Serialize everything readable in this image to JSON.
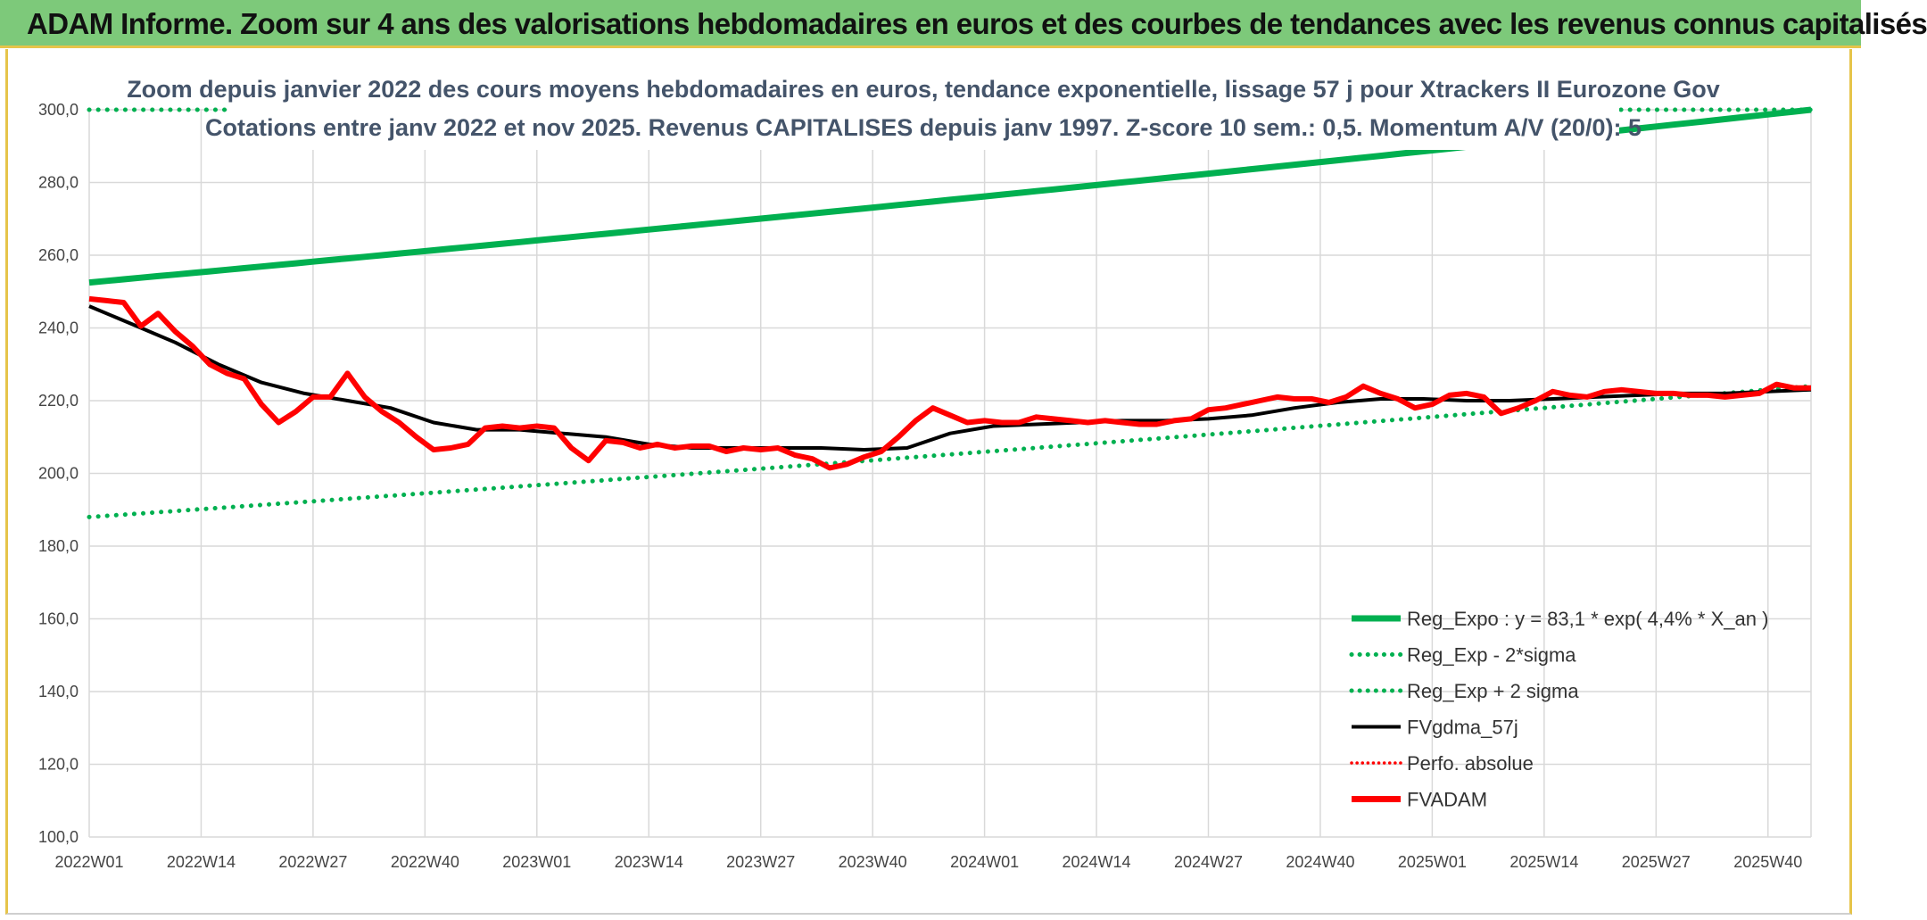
{
  "header": {
    "title": "ADAM Informe. Zoom sur 4 ans des valorisations hebdomadaires en euros et des courbes de tendances avec les revenus connus capitalisés"
  },
  "colors": {
    "banner": "#7dc97a",
    "reg_expo": "#00b050",
    "bands": "#00b050",
    "gdma": "#000000",
    "adam": "#ff0000"
  },
  "chart_data": {
    "type": "line",
    "title_lines": [
      "Zoom depuis janvier 2022 des cours moyens hebdomadaires en euros, tendance exponentielle, lissage 57 j pour Xtrackers II Eurozone Gov",
      "Cotations entre janv 2022 et nov 2025. Revenus CAPITALISES depuis janv 1997. Z-score 10 sem.: 0,5. Momentum A/V (20/0): 5"
    ],
    "ylim": [
      100,
      300
    ],
    "y_ticks": [
      "100,0",
      "120,0",
      "140,0",
      "160,0",
      "180,0",
      "200,0",
      "220,0",
      "240,0",
      "260,0",
      "280,0",
      "300,0"
    ],
    "y_tick_values": [
      100,
      120,
      140,
      160,
      180,
      200,
      220,
      240,
      260,
      280,
      300
    ],
    "x_range_weeks": [
      0,
      200
    ],
    "x_ticks": [
      "2022W01",
      "2022W14",
      "2022W27",
      "2022W40",
      "2023W01",
      "2023W14",
      "2023W27",
      "2023W40",
      "2024W01",
      "2024W14",
      "2024W27",
      "2024W40",
      "2025W01",
      "2025W14",
      "2025W27",
      "2025W40"
    ],
    "x_tick_weeks": [
      0,
      13,
      26,
      39,
      52,
      65,
      78,
      91,
      104,
      117,
      130,
      143,
      156,
      169,
      182,
      195
    ],
    "legend": [
      {
        "label": "Reg_Expo : y = 83,1 * exp( 4,4% *  X_an )",
        "style": "reg"
      },
      {
        "label": "Reg_Exp - 2*sigma",
        "style": "band"
      },
      {
        "label": "Reg_Exp + 2 sigma",
        "style": "band"
      },
      {
        "label": "FVgdma_57j",
        "style": "gdma"
      },
      {
        "label": "Perfo. absolue",
        "style": "perfo"
      },
      {
        "label": "FVADAM",
        "style": "adam"
      }
    ],
    "series": [
      {
        "name": "Reg_Expo",
        "start": 252.5,
        "end": 300.0
      },
      {
        "name": "Reg_Exp - 2*sigma",
        "start": 188.0,
        "end": 224.0
      },
      {
        "name": "Reg_Exp + 2 sigma",
        "value_visible": 300.0
      },
      {
        "name": "FVgdma_57j",
        "x": [
          0,
          5,
          10,
          15,
          20,
          25,
          30,
          35,
          40,
          45,
          50,
          55,
          60,
          65,
          70,
          75,
          80,
          85,
          90,
          95,
          100,
          105,
          110,
          115,
          120,
          125,
          130,
          135,
          140,
          145,
          150,
          155,
          160,
          165,
          170,
          175,
          180,
          185,
          190,
          195,
          200
        ],
        "y": [
          246,
          241,
          236,
          230,
          225,
          222,
          220,
          218,
          214,
          212,
          212,
          211,
          210,
          208,
          207,
          207,
          207,
          207,
          206.5,
          207,
          211,
          213,
          213.5,
          214,
          214.5,
          214.5,
          215,
          216,
          218,
          219.5,
          220.5,
          220.5,
          220,
          220,
          220.5,
          221,
          221.5,
          222,
          222,
          222.5,
          223
        ]
      },
      {
        "name": "FVADAM",
        "x": [
          0,
          2,
          4,
          6,
          8,
          10,
          12,
          14,
          16,
          18,
          20,
          22,
          24,
          26,
          28,
          30,
          32,
          34,
          36,
          38,
          40,
          42,
          44,
          46,
          48,
          50,
          52,
          54,
          56,
          58,
          60,
          62,
          64,
          66,
          68,
          70,
          72,
          74,
          76,
          78,
          80,
          82,
          84,
          86,
          88,
          90,
          92,
          94,
          96,
          98,
          100,
          102,
          104,
          106,
          108,
          110,
          112,
          114,
          116,
          118,
          120,
          122,
          124,
          126,
          128,
          130,
          132,
          134,
          136,
          138,
          140,
          142,
          144,
          146,
          148,
          150,
          152,
          154,
          156,
          158,
          160,
          162,
          164,
          166,
          168,
          170,
          172,
          174,
          176,
          178,
          180,
          182,
          184,
          186,
          188,
          190,
          192,
          194,
          196,
          198,
          200
        ],
        "y": [
          248,
          247.5,
          247,
          240.5,
          244,
          239,
          235,
          230,
          227.5,
          226,
          219,
          214,
          217,
          221,
          221,
          227.5,
          221,
          217,
          214,
          210,
          206.5,
          207,
          208,
          212.5,
          213,
          212.5,
          213,
          212.5,
          207,
          203.5,
          209,
          208.5,
          207,
          208,
          207,
          207.5,
          207.5,
          206,
          207,
          206.5,
          207,
          205,
          204,
          201.5,
          202.5,
          204.5,
          206,
          210,
          214.5,
          218,
          216,
          214,
          214.5,
          214,
          214,
          215.5,
          215,
          214.5,
          214,
          214.5,
          214,
          213.5,
          213.5,
          214.5,
          215,
          217.5,
          218,
          219,
          220,
          221,
          220.5,
          220.5,
          219.5,
          221,
          224,
          222,
          220.5,
          218,
          219,
          221.5,
          222,
          221,
          216.5,
          218,
          220,
          222.5,
          221.5,
          221,
          222.5,
          223,
          222.5,
          222,
          222,
          221.5,
          221.5,
          221,
          221.5,
          222,
          224.5,
          223.5,
          223.5
        ]
      }
    ]
  }
}
